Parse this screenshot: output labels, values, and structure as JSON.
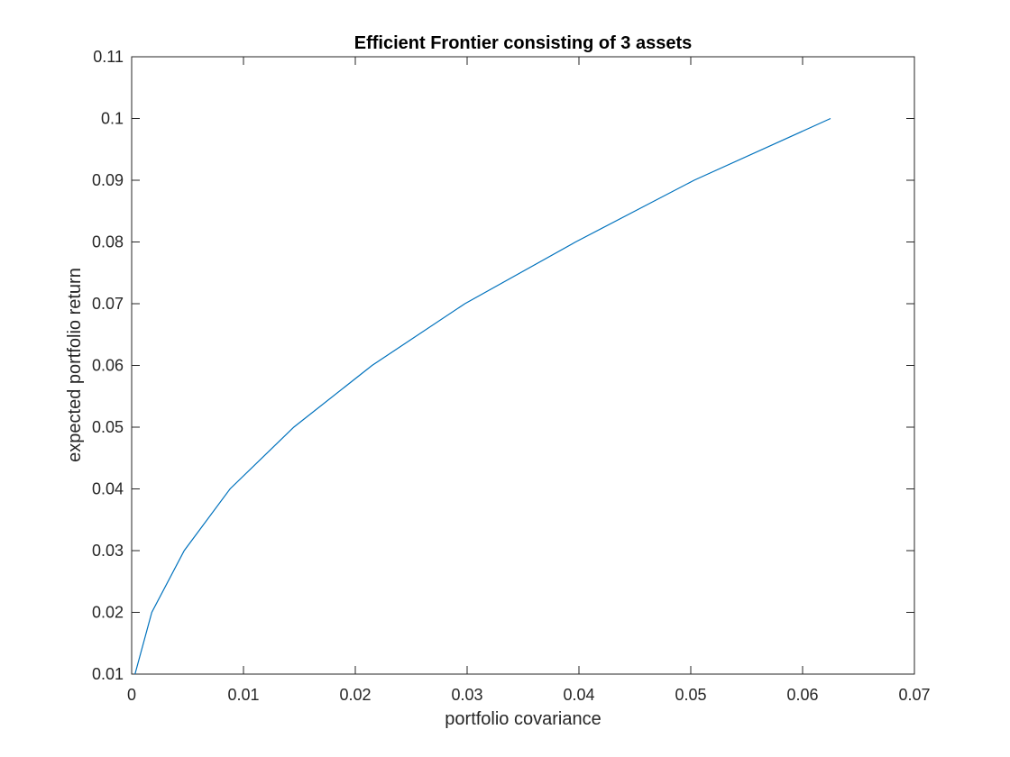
{
  "chart_data": {
    "type": "line",
    "title": "Efficient Frontier consisting of 3 assets",
    "xlabel": "portfolio covariance",
    "ylabel": "expected portfolio return",
    "xlim": [
      0,
      0.07
    ],
    "ylim": [
      0.01,
      0.11
    ],
    "xticks": [
      0,
      0.01,
      0.02,
      0.03,
      0.04,
      0.05,
      0.06,
      0.07
    ],
    "xtick_labels": [
      "0",
      "0.01",
      "0.02",
      "0.03",
      "0.04",
      "0.05",
      "0.06",
      "0.07"
    ],
    "yticks": [
      0.01,
      0.02,
      0.03,
      0.04,
      0.05,
      0.06,
      0.07,
      0.08,
      0.09,
      0.1,
      0.11
    ],
    "ytick_labels": [
      "0.01",
      "0.02",
      "0.03",
      "0.04",
      "0.05",
      "0.06",
      "0.07",
      "0.08",
      "0.09",
      "0.1",
      "0.11"
    ],
    "grid": false,
    "legend": "none",
    "line_color": "#0072BD",
    "series": [
      {
        "x": [
          0.0003,
          0.0018,
          0.0047,
          0.0088,
          0.0145,
          0.0215,
          0.0298,
          0.0397,
          0.0503,
          0.0625
        ],
        "y": [
          0.01,
          0.02,
          0.03,
          0.04,
          0.05,
          0.06,
          0.07,
          0.08,
          0.09,
          0.1
        ]
      }
    ]
  }
}
